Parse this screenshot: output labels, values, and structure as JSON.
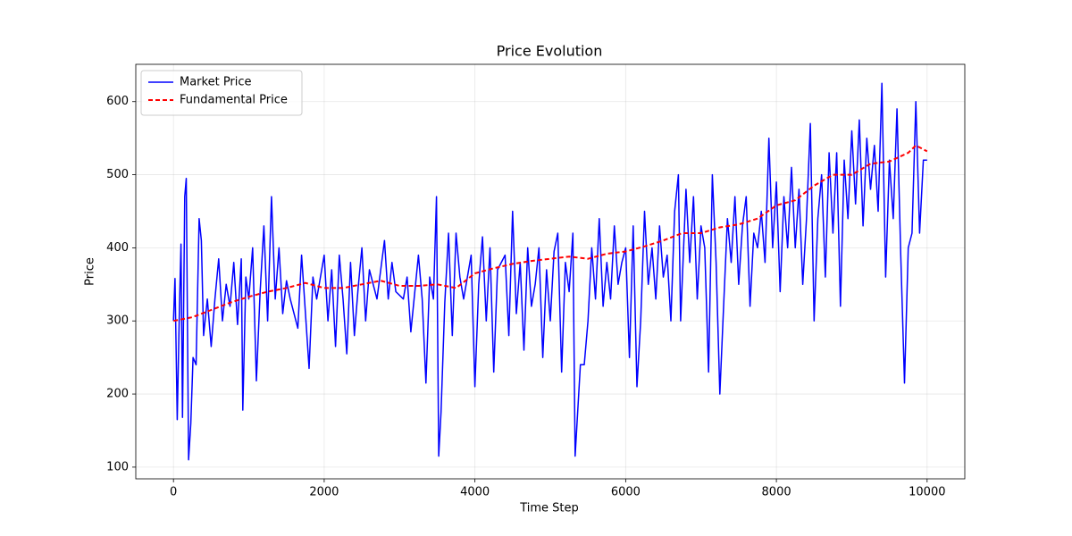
{
  "chart_data": {
    "type": "line",
    "title": "Price Evolution",
    "x_label": "Time Step",
    "y_label": "Price",
    "xlim": [
      -500,
      10500
    ],
    "ylim": [
      84,
      651
    ],
    "xticks": [
      0,
      2000,
      4000,
      6000,
      8000,
      10000
    ],
    "yticks": [
      100,
      200,
      300,
      400,
      500,
      600
    ],
    "grid": true,
    "legend": "upper left",
    "series": [
      {
        "name": "Market Price",
        "color": "#0000ff",
        "style": "solid",
        "x": [
          0,
          20,
          50,
          80,
          100,
          120,
          150,
          170,
          200,
          230,
          260,
          300,
          340,
          370,
          400,
          450,
          500,
          550,
          600,
          650,
          700,
          750,
          800,
          850,
          900,
          920,
          960,
          1000,
          1050,
          1100,
          1150,
          1200,
          1250,
          1300,
          1350,
          1400,
          1450,
          1500,
          1550,
          1650,
          1700,
          1800,
          1850,
          1900,
          2000,
          2050,
          2100,
          2150,
          2200,
          2250,
          2300,
          2350,
          2400,
          2450,
          2500,
          2550,
          2600,
          2700,
          2800,
          2850,
          2900,
          2950,
          3050,
          3100,
          3150,
          3250,
          3300,
          3350,
          3400,
          3450,
          3490,
          3520,
          3550,
          3600,
          3650,
          3700,
          3750,
          3800,
          3850,
          3950,
          4000,
          4050,
          4100,
          4150,
          4200,
          4250,
          4300,
          4400,
          4450,
          4500,
          4550,
          4600,
          4650,
          4700,
          4750,
          4800,
          4850,
          4900,
          4950,
          5000,
          5050,
          5100,
          5150,
          5200,
          5250,
          5300,
          5330,
          5400,
          5450,
          5500,
          5550,
          5600,
          5650,
          5700,
          5750,
          5800,
          5850,
          5900,
          5950,
          6000,
          6050,
          6100,
          6150,
          6200,
          6250,
          6300,
          6350,
          6400,
          6450,
          6500,
          6550,
          6600,
          6650,
          6700,
          6730,
          6800,
          6850,
          6900,
          6950,
          7000,
          7050,
          7100,
          7150,
          7200,
          7250,
          7300,
          7350,
          7400,
          7450,
          7500,
          7550,
          7600,
          7650,
          7700,
          7750,
          7800,
          7850,
          7900,
          7950,
          8000,
          8050,
          8100,
          8150,
          8200,
          8250,
          8300,
          8350,
          8400,
          8450,
          8500,
          8550,
          8600,
          8650,
          8700,
          8750,
          8800,
          8850,
          8900,
          8950,
          9000,
          9050,
          9100,
          9150,
          9200,
          9250,
          9300,
          9350,
          9400,
          9450,
          9500,
          9550,
          9600,
          9650,
          9700,
          9750,
          9800,
          9850,
          9900,
          9950,
          10000
        ],
        "values": [
          300,
          358,
          165,
          320,
          405,
          168,
          470,
          495,
          110,
          160,
          250,
          240,
          440,
          410,
          280,
          330,
          265,
          330,
          385,
          300,
          350,
          320,
          380,
          295,
          385,
          178,
          360,
          330,
          400,
          218,
          340,
          430,
          300,
          470,
          330,
          400,
          310,
          355,
          330,
          290,
          390,
          235,
          360,
          330,
          390,
          300,
          370,
          265,
          390,
          330,
          255,
          380,
          280,
          345,
          400,
          300,
          370,
          330,
          410,
          330,
          380,
          340,
          330,
          360,
          285,
          390,
          330,
          215,
          360,
          330,
          470,
          115,
          175,
          325,
          420,
          280,
          420,
          360,
          330,
          390,
          210,
          350,
          415,
          300,
          400,
          230,
          370,
          390,
          280,
          450,
          310,
          380,
          260,
          400,
          320,
          350,
          400,
          250,
          370,
          300,
          395,
          420,
          230,
          380,
          340,
          420,
          115,
          240,
          240,
          300,
          400,
          330,
          440,
          320,
          380,
          330,
          430,
          350,
          380,
          400,
          250,
          430,
          210,
          300,
          450,
          350,
          400,
          330,
          430,
          360,
          390,
          300,
          450,
          500,
          300,
          480,
          380,
          470,
          330,
          430,
          400,
          230,
          500,
          380,
          200,
          320,
          440,
          380,
          470,
          350,
          430,
          470,
          320,
          420,
          400,
          450,
          380,
          550,
          400,
          490,
          340,
          470,
          400,
          510,
          400,
          480,
          350,
          440,
          570,
          300,
          440,
          500,
          360,
          530,
          420,
          530,
          320,
          520,
          440,
          560,
          460,
          575,
          430,
          550,
          480,
          540,
          450,
          625,
          360,
          520,
          440,
          590,
          390,
          215,
          400,
          420,
          600,
          420,
          520,
          520
        ]
      },
      {
        "name": "Fundamental Price",
        "color": "#ff0000",
        "style": "dashed",
        "x": [
          0,
          250,
          500,
          750,
          1000,
          1250,
          1500,
          1750,
          2000,
          2250,
          2500,
          2750,
          3000,
          3250,
          3500,
          3750,
          4000,
          4250,
          4500,
          4750,
          5000,
          5250,
          5500,
          5750,
          6000,
          6250,
          6500,
          6750,
          7000,
          7250,
          7500,
          7750,
          8000,
          8250,
          8500,
          8750,
          9000,
          9250,
          9500,
          9750,
          9850,
          10000
        ],
        "values": [
          300,
          305,
          315,
          325,
          333,
          340,
          345,
          352,
          345,
          345,
          350,
          355,
          348,
          348,
          350,
          345,
          365,
          372,
          378,
          382,
          385,
          388,
          385,
          392,
          395,
          402,
          410,
          420,
          420,
          428,
          432,
          440,
          458,
          465,
          485,
          500,
          500,
          515,
          518,
          530,
          540,
          532
        ]
      }
    ]
  }
}
